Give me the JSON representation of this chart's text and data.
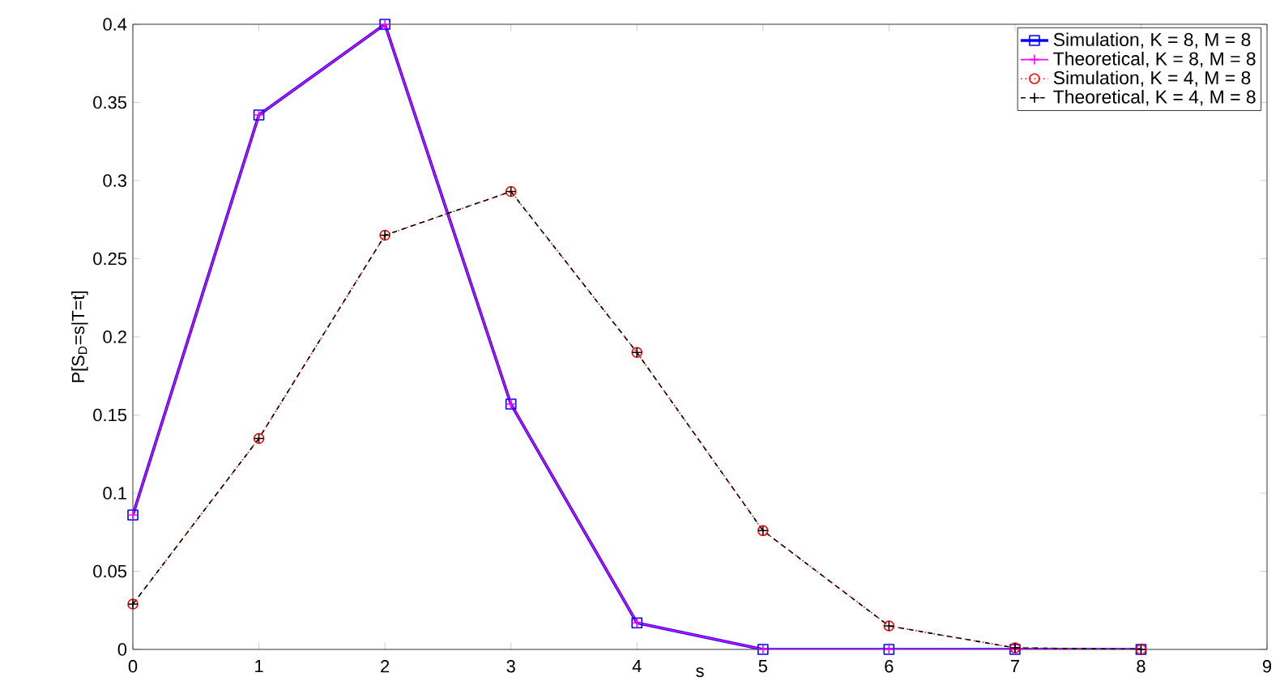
{
  "chart_data": {
    "type": "line",
    "xlabel": "s",
    "ylabel": "P[S$_{D}$=s|T=t]",
    "x": [
      0,
      1,
      2,
      3,
      4,
      5,
      6,
      7,
      8
    ],
    "xlim": [
      0,
      9
    ],
    "ylim": [
      0,
      0.4
    ],
    "xticks": [
      0,
      1,
      2,
      3,
      4,
      5,
      6,
      7,
      8,
      9
    ],
    "yticks": [
      0,
      0.05,
      0.1,
      0.15,
      0.2,
      0.25,
      0.3,
      0.35,
      0.4
    ],
    "legend": "top right",
    "series": [
      {
        "name": "Simulation, K = 8, M = 8",
        "color": "#0000ff",
        "marker": "square",
        "line_style": "solid",
        "values": [
          0.086,
          0.342,
          0.4,
          0.157,
          0.017,
          0,
          0,
          0,
          0
        ]
      },
      {
        "name": "Theoretical, K = 8, M = 8",
        "color": "#ff00ff",
        "marker": "cross",
        "line_style": "solid",
        "values": [
          0.086,
          0.342,
          0.4,
          0.157,
          0.017,
          0,
          0,
          0,
          0
        ]
      },
      {
        "name": "Simulation, K = 4, M = 8",
        "color": "#ff0000",
        "marker": "circle",
        "line_style": "dotted",
        "values": [
          0.029,
          0.135,
          0.265,
          0.293,
          0.19,
          0.076,
          0.015,
          0.001,
          0
        ]
      },
      {
        "name": "Theoretical, K = 4, M = 8",
        "color": "#000000",
        "marker": "cross",
        "line_style": "dashed",
        "values": [
          0.029,
          0.135,
          0.265,
          0.293,
          0.19,
          0.076,
          0.015,
          0.001,
          0
        ]
      }
    ]
  }
}
